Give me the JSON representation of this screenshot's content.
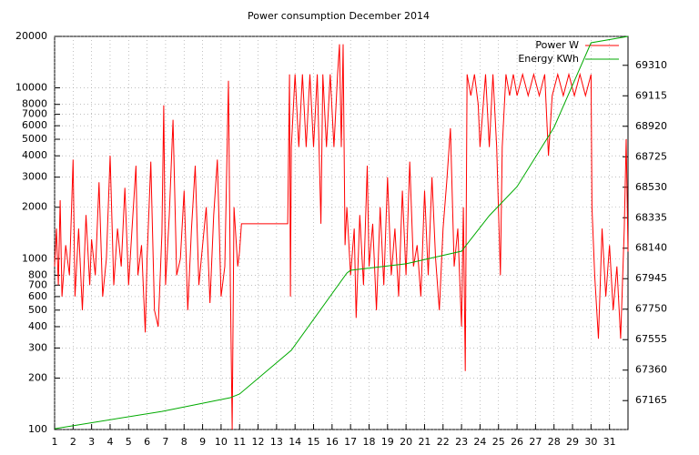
{
  "chart_data": {
    "type": "line",
    "title": "Power consumption December 2014",
    "xlim": [
      1,
      32
    ],
    "xticks": [
      1,
      2,
      3,
      4,
      5,
      6,
      7,
      8,
      9,
      10,
      11,
      12,
      13,
      14,
      15,
      16,
      17,
      18,
      19,
      20,
      21,
      22,
      23,
      24,
      25,
      26,
      27,
      28,
      29,
      30,
      31
    ],
    "ylim": [
      100,
      20000
    ],
    "log_y": true,
    "yticks": [
      100,
      200,
      300,
      400,
      500,
      600,
      700,
      800,
      1000,
      2000,
      3000,
      4000,
      5000,
      6000,
      7000,
      8000,
      10000,
      20000
    ],
    "y2lim": [
      66980,
      69495
    ],
    "y2ticks": [
      67165,
      67360,
      67555,
      67750,
      67945,
      68140,
      68335,
      68530,
      68725,
      68920,
      69115,
      69310
    ],
    "grid": true,
    "legend": "upper right",
    "series": [
      {
        "name": "Power W",
        "color": "#ff0000",
        "x": [
          1.0,
          1.1,
          1.2,
          1.3,
          1.4,
          1.6,
          1.8,
          2.0,
          2.1,
          2.3,
          2.5,
          2.7,
          2.9,
          3.0,
          3.2,
          3.4,
          3.6,
          3.8,
          4.0,
          4.2,
          4.4,
          4.6,
          4.8,
          5.0,
          5.2,
          5.4,
          5.5,
          5.7,
          5.9,
          6.0,
          6.2,
          6.4,
          6.6,
          6.8,
          6.9,
          7.0,
          7.2,
          7.4,
          7.6,
          7.8,
          8.0,
          8.2,
          8.4,
          8.6,
          8.8,
          9.0,
          9.2,
          9.4,
          9.6,
          9.8,
          10.0,
          10.2,
          10.4,
          10.5,
          10.6,
          10.7,
          10.9,
          11.0,
          11.1,
          13.6,
          13.7,
          13.75,
          13.8,
          14.0,
          14.2,
          14.4,
          14.6,
          14.8,
          15.0,
          15.2,
          15.4,
          15.5,
          15.7,
          15.9,
          16.1,
          16.3,
          16.4,
          16.5,
          16.6,
          16.7,
          16.8,
          17.0,
          17.2,
          17.3,
          17.5,
          17.7,
          17.9,
          18.0,
          18.2,
          18.4,
          18.6,
          18.8,
          19.0,
          19.2,
          19.4,
          19.6,
          19.8,
          20.0,
          20.2,
          20.4,
          20.6,
          20.8,
          21.0,
          21.2,
          21.4,
          21.6,
          21.8,
          22.0,
          22.2,
          22.4,
          22.6,
          22.8,
          23.0,
          23.1,
          23.2,
          23.3,
          23.5,
          23.7,
          23.9,
          24.0,
          24.3,
          24.5,
          24.7,
          24.9,
          25.1,
          25.2,
          25.4,
          25.6,
          25.8,
          26.0,
          26.3,
          26.6,
          26.9,
          27.2,
          27.5,
          27.7,
          27.9,
          28.2,
          28.5,
          28.8,
          29.1,
          29.4,
          29.7,
          30.0,
          30.05,
          30.2,
          30.4,
          30.6,
          30.8,
          31.0,
          31.2,
          31.4,
          31.6,
          31.8,
          31.9,
          32.0
        ],
        "values": [
          900,
          1500,
          700,
          2200,
          600,
          1200,
          800,
          3800,
          600,
          1500,
          500,
          1800,
          700,
          1300,
          800,
          2800,
          600,
          1000,
          4000,
          700,
          1500,
          900,
          2600,
          700,
          1600,
          3500,
          800,
          1200,
          370,
          1000,
          3700,
          500,
          400,
          1400,
          7900,
          700,
          1800,
          6500,
          800,
          1000,
          2500,
          500,
          1500,
          3500,
          700,
          1200,
          2000,
          550,
          1800,
          3800,
          600,
          900,
          11000,
          700,
          100,
          2000,
          900,
          1100,
          1600,
          1600,
          12000,
          600,
          4500,
          12000,
          4500,
          12000,
          4500,
          12000,
          4500,
          12000,
          1600,
          12000,
          4500,
          12000,
          4500,
          12000,
          18000,
          4500,
          18000,
          1200,
          2000,
          800,
          1500,
          450,
          1800,
          700,
          3500,
          900,
          1600,
          500,
          2000,
          700,
          3000,
          800,
          1500,
          600,
          2500,
          800,
          3700,
          900,
          1200,
          600,
          2500,
          800,
          3000,
          1000,
          500,
          1500,
          2800,
          5800,
          900,
          1500,
          400,
          2000,
          220,
          12000,
          9000,
          12000,
          8000,
          4500,
          12000,
          4500,
          12000,
          4500,
          800,
          4500,
          12000,
          9000,
          12000,
          9000,
          12000,
          9000,
          12000,
          9000,
          12000,
          4000,
          9000,
          12000,
          9000,
          12000,
          9000,
          12000,
          9000,
          12000,
          2000,
          800,
          340,
          1500,
          600,
          1200,
          500,
          900,
          340,
          1500,
          5000,
          1100
        ]
      },
      {
        "name": "Energy KWh",
        "color": "#00aa00",
        "axis": "y2",
        "x": [
          1,
          6.8,
          10.5,
          11,
          13.8,
          16.8,
          17,
          20,
          23,
          24.5,
          26,
          28,
          30,
          32
        ],
        "values": [
          66985,
          67096,
          67184,
          67207,
          67487,
          67981,
          67999,
          68040,
          68121,
          68348,
          68534,
          68913,
          69454,
          69495
        ]
      }
    ]
  }
}
